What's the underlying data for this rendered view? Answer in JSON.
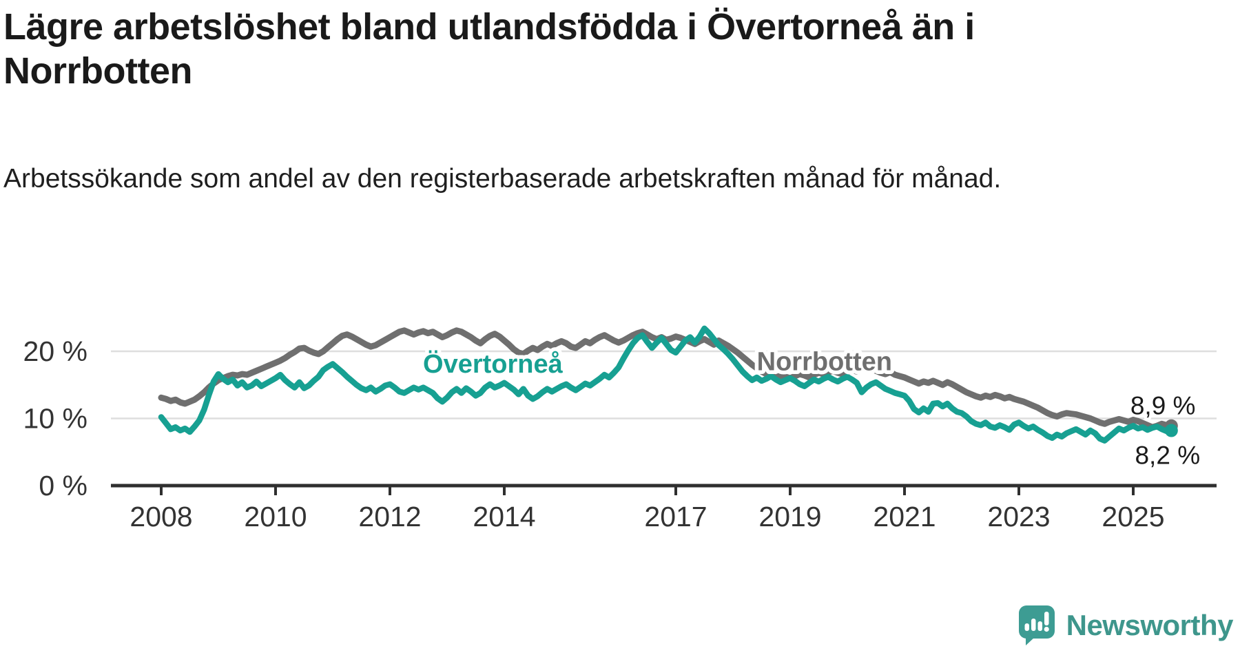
{
  "title": "Lägre arbetslöshet bland utlandsfödda i Övertorneå än i Norrbotten",
  "subtitle": "Arbetssökande som andel av den registerbaserade arbetskraften månad för månad.",
  "brand": {
    "name": "Newsworthy",
    "icon": "newsworthy-speech-bubble-chart-icon",
    "icon_color": "#3D9C93",
    "text_color": "#3E968C"
  },
  "chart_data": {
    "type": "line",
    "title": "Lägre arbetslöshet bland utlandsfödda i Övertorneå än i Norrbotten",
    "xlabel": "",
    "ylabel": "",
    "x_start": {
      "year": 2008,
      "month": 1
    },
    "x_end": {
      "year": 2025,
      "month": 9
    },
    "x_ticks": [
      2008,
      2010,
      2012,
      2014,
      2017,
      2019,
      2021,
      2023,
      2025
    ],
    "y_ticks": [
      {
        "value": 0,
        "label": "0 %"
      },
      {
        "value": 10,
        "label": "10 %"
      },
      {
        "value": 20,
        "label": "20 %"
      }
    ],
    "ylim": [
      0,
      25.6
    ],
    "grid": "horizontal-only",
    "legend_position": "inline-labels",
    "style": {
      "grid_color": "#DEDEDE",
      "axis_color": "#2F2F2F",
      "tick_label_color": "#333333",
      "background": "#FFFFFF"
    },
    "series": [
      {
        "name": "Norrbotten",
        "color": "#6F6F6F",
        "line_width": 9,
        "end_value": 8.9,
        "end_label": "8,9 %",
        "values": [
          13.1,
          12.9,
          12.6,
          12.8,
          12.4,
          12.2,
          12.5,
          12.8,
          13.3,
          13.9,
          14.6,
          15.2,
          15.7,
          16.0,
          16.3,
          16.5,
          16.4,
          16.6,
          16.5,
          16.8,
          17.1,
          17.4,
          17.7,
          18.0,
          18.3,
          18.6,
          19.0,
          19.5,
          19.9,
          20.4,
          20.5,
          20.1,
          19.8,
          19.6,
          20.0,
          20.6,
          21.2,
          21.8,
          22.3,
          22.5,
          22.2,
          21.8,
          21.4,
          21.0,
          20.7,
          20.9,
          21.3,
          21.7,
          22.1,
          22.5,
          22.9,
          23.1,
          22.8,
          22.5,
          22.8,
          23.0,
          22.7,
          22.9,
          22.5,
          22.1,
          22.4,
          22.8,
          23.1,
          22.9,
          22.5,
          22.1,
          21.6,
          21.2,
          21.8,
          22.3,
          22.6,
          22.2,
          21.6,
          21.0,
          20.3,
          19.8,
          19.6,
          20.1,
          20.5,
          20.2,
          20.7,
          21.1,
          20.8,
          21.2,
          21.5,
          21.2,
          20.7,
          20.5,
          21.0,
          21.5,
          21.2,
          21.7,
          22.1,
          22.4,
          22.0,
          21.6,
          21.3,
          21.6,
          22.0,
          22.4,
          22.7,
          22.9,
          22.5,
          22.1,
          21.8,
          22.1,
          21.7,
          21.9,
          22.2,
          22.0,
          21.7,
          21.4,
          21.1,
          21.5,
          21.8,
          21.4,
          21.0,
          21.6,
          21.2,
          20.8,
          20.3,
          19.8,
          19.2,
          18.6,
          18.0,
          17.5,
          17.0,
          16.6,
          16.3,
          16.1,
          16.4,
          16.2,
          16.0,
          16.3,
          16.6,
          16.4,
          16.1,
          16.5,
          16.8,
          16.6,
          16.9,
          17.1,
          16.8,
          16.6,
          16.9,
          17.2,
          17.0,
          17.4,
          17.6,
          17.3,
          17.1,
          16.8,
          16.6,
          16.9,
          16.5,
          16.3,
          16.1,
          15.8,
          15.5,
          15.2,
          15.5,
          15.3,
          15.6,
          15.3,
          15.0,
          15.4,
          15.1,
          14.7,
          14.3,
          13.9,
          13.6,
          13.3,
          13.1,
          13.4,
          13.2,
          13.5,
          13.3,
          13.0,
          13.2,
          12.9,
          12.7,
          12.5,
          12.2,
          11.9,
          11.6,
          11.2,
          10.8,
          10.5,
          10.3,
          10.6,
          10.8,
          10.7,
          10.6,
          10.4,
          10.2,
          10.0,
          9.7,
          9.4,
          9.2,
          9.5,
          9.7,
          9.9,
          9.7,
          9.5,
          9.8,
          9.6,
          9.3,
          9.0,
          8.7,
          8.9,
          9.2,
          9.0,
          8.9
        ]
      },
      {
        "name": "Övertorneå",
        "color": "#17A092",
        "line_width": 8.5,
        "end_value": 8.2,
        "end_label": "8,2 %",
        "values": [
          10.2,
          9.3,
          8.4,
          8.7,
          8.2,
          8.5,
          8.0,
          8.8,
          9.7,
          11.3,
          13.5,
          15.5,
          16.6,
          15.9,
          15.4,
          15.8,
          14.9,
          15.4,
          14.6,
          14.9,
          15.5,
          14.8,
          15.2,
          15.6,
          16.0,
          16.5,
          15.7,
          15.1,
          14.6,
          15.4,
          14.5,
          14.9,
          15.6,
          16.2,
          17.2,
          17.7,
          18.1,
          17.5,
          16.9,
          16.2,
          15.6,
          15.0,
          14.5,
          14.2,
          14.6,
          14.0,
          14.4,
          14.9,
          15.1,
          14.6,
          14.0,
          13.8,
          14.2,
          14.6,
          14.3,
          14.6,
          14.2,
          13.8,
          13.0,
          12.5,
          13.1,
          13.9,
          14.4,
          13.8,
          14.5,
          14.0,
          13.4,
          13.8,
          14.6,
          15.1,
          14.6,
          14.9,
          15.3,
          14.8,
          14.3,
          13.6,
          14.4,
          13.4,
          12.9,
          13.3,
          13.9,
          14.4,
          14.0,
          14.4,
          14.8,
          15.1,
          14.6,
          14.2,
          14.7,
          15.2,
          14.9,
          15.4,
          15.9,
          16.5,
          16.1,
          16.8,
          17.6,
          18.9,
          20.1,
          21.2,
          22.0,
          22.4,
          21.4,
          20.5,
          21.3,
          22.0,
          21.1,
          20.2,
          19.8,
          20.7,
          21.6,
          22.1,
          21.3,
          22.2,
          23.4,
          22.7,
          21.8,
          20.9,
          20.3,
          19.6,
          18.8,
          17.9,
          17.0,
          16.3,
          15.7,
          16.1,
          15.6,
          15.9,
          16.3,
          15.8,
          15.4,
          15.7,
          16.0,
          15.6,
          15.1,
          14.8,
          15.3,
          15.8,
          15.5,
          15.9,
          16.2,
          15.8,
          15.5,
          15.9,
          16.2,
          15.8,
          15.3,
          13.9,
          14.6,
          15.1,
          15.4,
          14.9,
          14.4,
          14.1,
          13.8,
          13.6,
          13.4,
          12.6,
          11.4,
          10.9,
          11.5,
          11.0,
          12.2,
          12.3,
          11.8,
          12.2,
          11.5,
          11.0,
          10.8,
          10.3,
          9.6,
          9.2,
          9.0,
          9.4,
          8.8,
          8.6,
          9.0,
          8.7,
          8.3,
          9.1,
          9.4,
          8.9,
          8.5,
          8.8,
          8.3,
          7.9,
          7.4,
          7.1,
          7.6,
          7.3,
          7.8,
          8.1,
          8.4,
          8.0,
          7.6,
          8.2,
          7.8,
          7.0,
          6.7,
          7.3,
          7.9,
          8.5,
          8.2,
          8.6,
          8.9,
          8.5,
          8.7,
          8.3,
          8.6,
          8.8,
          8.4,
          8.1,
          8.2
        ]
      }
    ],
    "annotations": [
      {
        "text": "Övertorneå",
        "x_year": 2013.8,
        "y_pct": 18.2,
        "color": "#17A092",
        "size": 38,
        "bold": true,
        "halo": 11
      },
      {
        "text": "Norrbotten",
        "x_year": 2019.6,
        "y_pct": 18.6,
        "color": "#6F6F6F",
        "size": 38,
        "bold": true,
        "halo": 11
      },
      {
        "text": "8,9 %",
        "x_year": 2025.52,
        "y_pct": 12.0,
        "color": "#1a1a1a",
        "size": 37,
        "bold": false,
        "halo": 8
      },
      {
        "text": "8,2 %",
        "x_year": 2025.6,
        "y_pct": 4.6,
        "color": "#1a1a1a",
        "size": 37,
        "bold": false,
        "halo": 8
      }
    ]
  }
}
